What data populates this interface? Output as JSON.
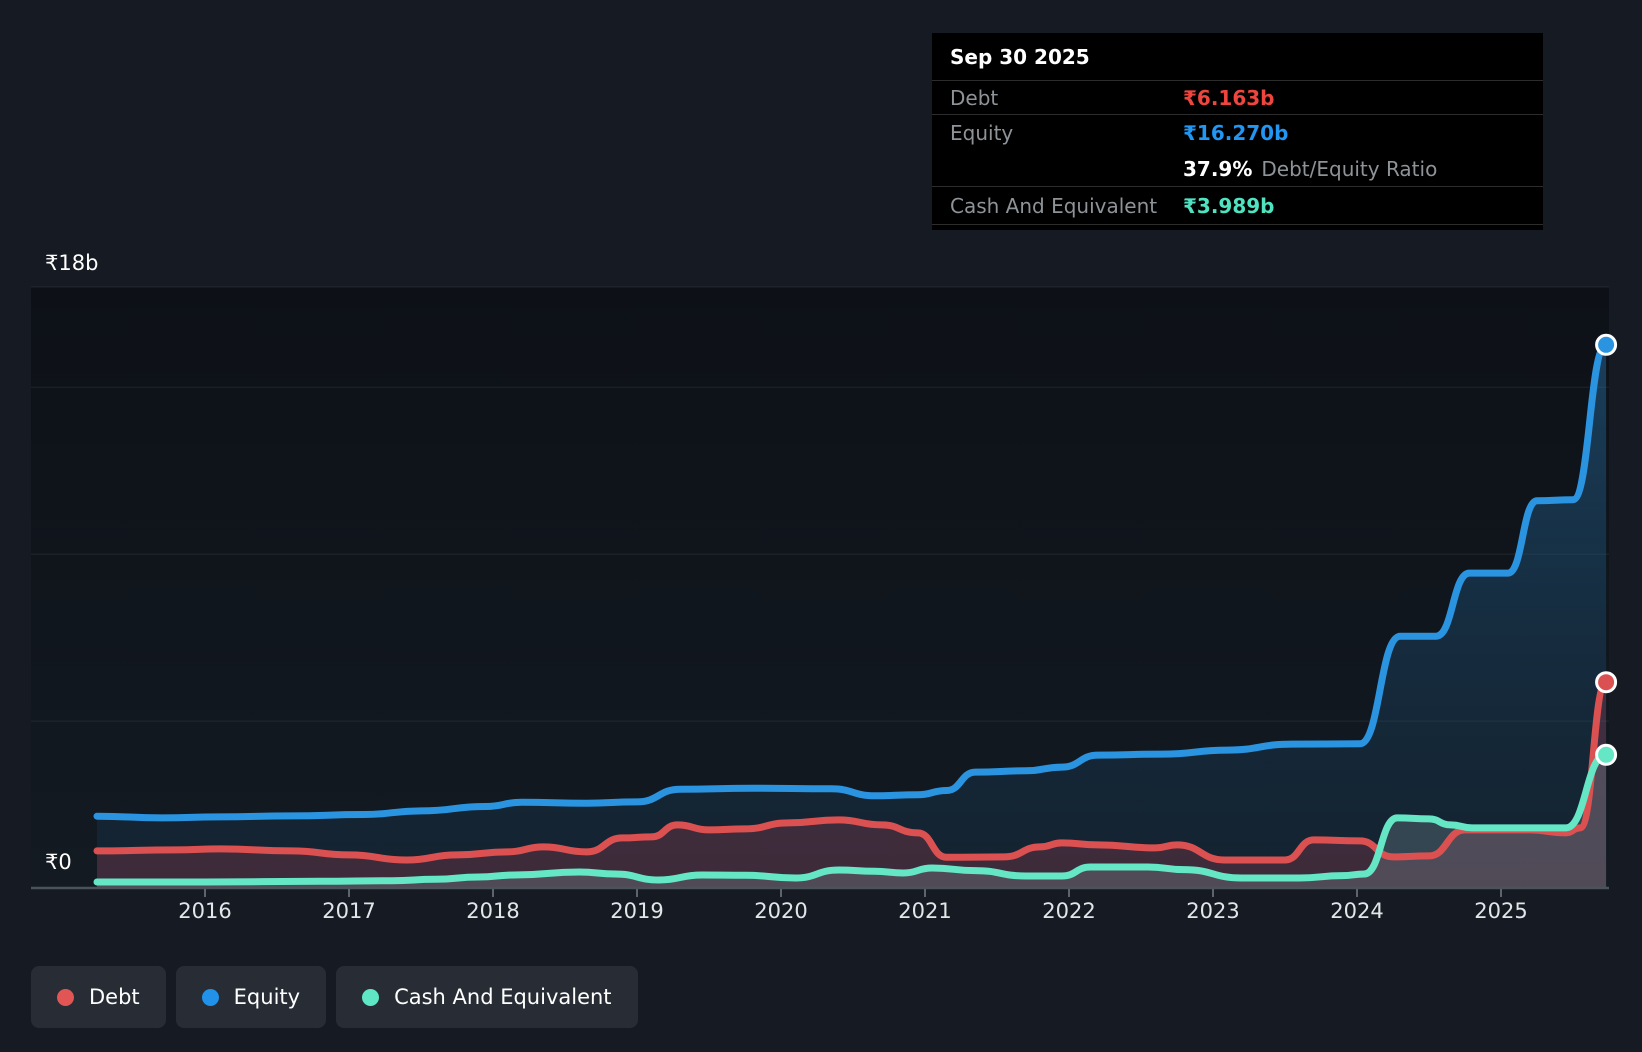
{
  "tooltip": {
    "date": "Sep 30 2025",
    "debt_label": "Debt",
    "debt_value": "₹6.163b",
    "equity_label": "Equity",
    "equity_value": "₹16.270b",
    "ratio_value": "37.9%",
    "ratio_label": "Debt/Equity Ratio",
    "cash_label": "Cash And Equivalent",
    "cash_value": "₹3.989b"
  },
  "axis": {
    "y_top_label": "₹18b",
    "y_zero_label": "₹0"
  },
  "legend": [
    {
      "label": "Debt",
      "color": "#e15555"
    },
    {
      "label": "Equity",
      "color": "#2191e9"
    },
    {
      "label": "Cash And Equivalent",
      "color": "#5fe6c4"
    }
  ],
  "colors": {
    "debt_text": "#ee453e",
    "equity_text": "#2196f3",
    "cash_text": "#4fe3c1",
    "page_bg": "#161b23",
    "tooltip_bg": "#000000"
  },
  "chart_data": {
    "type": "area",
    "title": "Debt to Equity History (Sep 30 2025: Debt ₹6.163b, Equity ₹16.270b, Debt/Equity 37.9%, Cash ₹3.989b)",
    "unit": "₹ billions (INR)",
    "ylim": [
      0,
      18
    ],
    "y_gridline_values": [
      18,
      15,
      10,
      5
    ],
    "x_axis": {
      "ticks": [
        2016,
        2017,
        2018,
        2019,
        2020,
        2021,
        2022,
        2023,
        2024,
        2025
      ]
    },
    "x_range": [
      2015.25,
      2025.75
    ],
    "legend_position": "bottom-left",
    "series": [
      {
        "name": "Debt",
        "color": "#db5151",
        "fill": "rgba(158,62,84,0.30)",
        "points": [
          [
            2015.25,
            1.11
          ],
          [
            2015.8,
            1.14
          ],
          [
            2016.1,
            1.17
          ],
          [
            2016.6,
            1.11
          ],
          [
            2017.0,
            0.99
          ],
          [
            2017.4,
            0.84
          ],
          [
            2017.75,
            0.99
          ],
          [
            2018.1,
            1.08
          ],
          [
            2018.35,
            1.23
          ],
          [
            2018.65,
            1.08
          ],
          [
            2018.9,
            1.5
          ],
          [
            2019.1,
            1.53
          ],
          [
            2019.28,
            1.89
          ],
          [
            2019.5,
            1.74
          ],
          [
            2019.75,
            1.77
          ],
          [
            2020.05,
            1.95
          ],
          [
            2020.4,
            2.04
          ],
          [
            2020.7,
            1.89
          ],
          [
            2020.95,
            1.65
          ],
          [
            2021.15,
            0.92
          ],
          [
            2021.55,
            0.93
          ],
          [
            2021.8,
            1.23
          ],
          [
            2021.95,
            1.35
          ],
          [
            2022.2,
            1.29
          ],
          [
            2022.6,
            1.2
          ],
          [
            2022.75,
            1.29
          ],
          [
            2023.08,
            0.84
          ],
          [
            2023.5,
            0.84
          ],
          [
            2023.7,
            1.44
          ],
          [
            2024.02,
            1.41
          ],
          [
            2024.25,
            0.93
          ],
          [
            2024.5,
            0.96
          ],
          [
            2024.75,
            1.74
          ],
          [
            2025.2,
            1.74
          ],
          [
            2025.45,
            1.65
          ],
          [
            2025.55,
            1.8
          ],
          [
            2025.73,
            6.163
          ]
        ]
      },
      {
        "name": "Equity",
        "color": "#2b94e1",
        "fill": "gradient",
        "points": [
          [
            2015.25,
            2.15
          ],
          [
            2015.7,
            2.1
          ],
          [
            2016.1,
            2.13
          ],
          [
            2016.6,
            2.16
          ],
          [
            2017.1,
            2.2
          ],
          [
            2017.5,
            2.31
          ],
          [
            2017.95,
            2.44
          ],
          [
            2018.2,
            2.57
          ],
          [
            2018.65,
            2.54
          ],
          [
            2019.0,
            2.58
          ],
          [
            2019.3,
            2.96
          ],
          [
            2019.8,
            2.99
          ],
          [
            2020.35,
            2.97
          ],
          [
            2020.65,
            2.76
          ],
          [
            2020.95,
            2.79
          ],
          [
            2021.15,
            2.92
          ],
          [
            2021.35,
            3.47
          ],
          [
            2021.7,
            3.51
          ],
          [
            2021.95,
            3.62
          ],
          [
            2022.2,
            3.98
          ],
          [
            2022.65,
            4.01
          ],
          [
            2023.1,
            4.13
          ],
          [
            2023.55,
            4.31
          ],
          [
            2024.02,
            4.32
          ],
          [
            2024.3,
            7.54
          ],
          [
            2024.55,
            7.54
          ],
          [
            2024.78,
            9.43
          ],
          [
            2025.05,
            9.43
          ],
          [
            2025.25,
            11.6
          ],
          [
            2025.5,
            11.63
          ],
          [
            2025.73,
            16.27
          ]
        ]
      },
      {
        "name": "Cash And Equivalent",
        "color": "#65e6c5",
        "fill": "rgba(126,148,155,0.30)",
        "points": [
          [
            2015.25,
            0.18
          ],
          [
            2016.0,
            0.18
          ],
          [
            2016.8,
            0.2
          ],
          [
            2017.3,
            0.22
          ],
          [
            2017.6,
            0.26
          ],
          [
            2017.9,
            0.33
          ],
          [
            2018.15,
            0.39
          ],
          [
            2018.6,
            0.48
          ],
          [
            2018.85,
            0.42
          ],
          [
            2019.15,
            0.24
          ],
          [
            2019.45,
            0.39
          ],
          [
            2019.75,
            0.38
          ],
          [
            2020.1,
            0.3
          ],
          [
            2020.4,
            0.54
          ],
          [
            2020.65,
            0.5
          ],
          [
            2020.85,
            0.45
          ],
          [
            2021.05,
            0.6
          ],
          [
            2021.35,
            0.52
          ],
          [
            2021.7,
            0.36
          ],
          [
            2021.95,
            0.36
          ],
          [
            2022.15,
            0.63
          ],
          [
            2022.55,
            0.63
          ],
          [
            2022.8,
            0.55
          ],
          [
            2023.2,
            0.3
          ],
          [
            2023.6,
            0.3
          ],
          [
            2023.9,
            0.37
          ],
          [
            2024.05,
            0.42
          ],
          [
            2024.28,
            2.1
          ],
          [
            2024.5,
            2.07
          ],
          [
            2024.65,
            1.89
          ],
          [
            2024.8,
            1.8
          ],
          [
            2025.45,
            1.8
          ],
          [
            2025.73,
            3.989
          ]
        ]
      }
    ]
  }
}
